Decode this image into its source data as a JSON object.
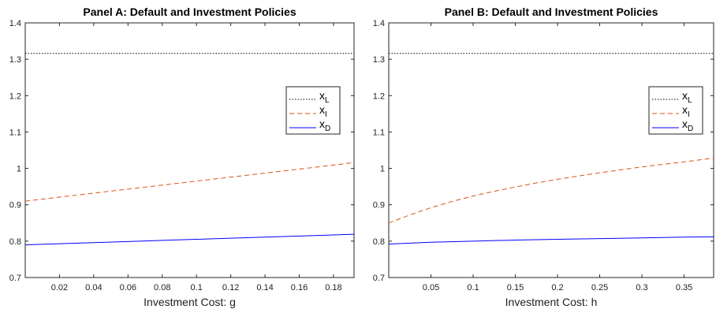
{
  "chart_data": [
    {
      "type": "line",
      "title": "Panel A: Default and Investment Policies",
      "xlabel": "Investment Cost: g",
      "ylabel": "",
      "xlim": [
        0,
        0.192
      ],
      "ylim": [
        0.7,
        1.4
      ],
      "xticks": [
        0.02,
        0.04,
        0.06,
        0.08,
        0.1,
        0.12,
        0.14,
        0.16,
        0.18
      ],
      "xtick_labels": [
        "0.02",
        "0.04",
        "0.06",
        "0.08",
        "0.1",
        "0.12",
        "0.14",
        "0.16",
        "0.18"
      ],
      "yticks": [
        0.7,
        0.8,
        0.9,
        1.0,
        1.1,
        1.2,
        1.3,
        1.4
      ],
      "ytick_labels": [
        "0.7",
        "0.8",
        "0.9",
        "1",
        "1.1",
        "1.2",
        "1.3",
        "1.4"
      ],
      "grid": false,
      "legend_position": "top-right",
      "series": [
        {
          "name": "x_L",
          "label_main": "x",
          "label_sub": "L",
          "color": "#000000",
          "style": "dotted",
          "x": [
            0,
            0.192
          ],
          "y": [
            1.316,
            1.316
          ]
        },
        {
          "name": "x_I",
          "label_main": "x",
          "label_sub": "I",
          "color": "#d95319",
          "style": "dashed",
          "x": [
            0,
            0.02,
            0.04,
            0.06,
            0.08,
            0.1,
            0.12,
            0.14,
            0.16,
            0.18,
            0.192
          ],
          "y": [
            0.91,
            0.921,
            0.932,
            0.943,
            0.954,
            0.965,
            0.976,
            0.987,
            0.998,
            1.009,
            1.016
          ]
        },
        {
          "name": "x_D",
          "label_main": "x",
          "label_sub": "D",
          "color": "#0000ff",
          "style": "solid",
          "x": [
            0,
            0.02,
            0.04,
            0.06,
            0.08,
            0.1,
            0.12,
            0.14,
            0.16,
            0.18,
            0.192
          ],
          "y": [
            0.79,
            0.793,
            0.796,
            0.799,
            0.802,
            0.805,
            0.808,
            0.811,
            0.814,
            0.817,
            0.819
          ]
        }
      ]
    },
    {
      "type": "line",
      "title": "Panel B: Default and Investment Policies",
      "xlabel": "Investment Cost: h",
      "ylabel": "",
      "xlim": [
        0,
        0.385
      ],
      "ylim": [
        0.7,
        1.4
      ],
      "xticks": [
        0.05,
        0.1,
        0.15,
        0.2,
        0.25,
        0.3,
        0.35
      ],
      "xtick_labels": [
        "0.05",
        "0.1",
        "0.15",
        "0.2",
        "0.25",
        "0.3",
        "0.35"
      ],
      "yticks": [
        0.7,
        0.8,
        0.9,
        1.0,
        1.1,
        1.2,
        1.3,
        1.4
      ],
      "ytick_labels": [
        "0.7",
        "0.8",
        "0.9",
        "1",
        "1.1",
        "1.2",
        "1.3",
        "1.4"
      ],
      "grid": false,
      "legend_position": "top-right",
      "series": [
        {
          "name": "x_L",
          "label_main": "x",
          "label_sub": "L",
          "color": "#000000",
          "style": "dotted",
          "x": [
            0,
            0.385
          ],
          "y": [
            1.316,
            1.316
          ]
        },
        {
          "name": "x_I",
          "label_main": "x",
          "label_sub": "I",
          "color": "#d95319",
          "style": "dashed",
          "x": [
            0,
            0.025,
            0.05,
            0.075,
            0.1,
            0.125,
            0.15,
            0.175,
            0.2,
            0.225,
            0.25,
            0.275,
            0.3,
            0.325,
            0.35,
            0.385
          ],
          "y": [
            0.85,
            0.872,
            0.892,
            0.909,
            0.924,
            0.937,
            0.949,
            0.96,
            0.97,
            0.979,
            0.988,
            0.996,
            1.004,
            1.011,
            1.018,
            1.028
          ]
        },
        {
          "name": "x_D",
          "label_main": "x",
          "label_sub": "D",
          "color": "#0000ff",
          "style": "solid",
          "x": [
            0,
            0.05,
            0.1,
            0.15,
            0.2,
            0.25,
            0.3,
            0.35,
            0.385
          ],
          "y": [
            0.792,
            0.797,
            0.8,
            0.803,
            0.805,
            0.807,
            0.809,
            0.811,
            0.812
          ]
        }
      ]
    }
  ]
}
